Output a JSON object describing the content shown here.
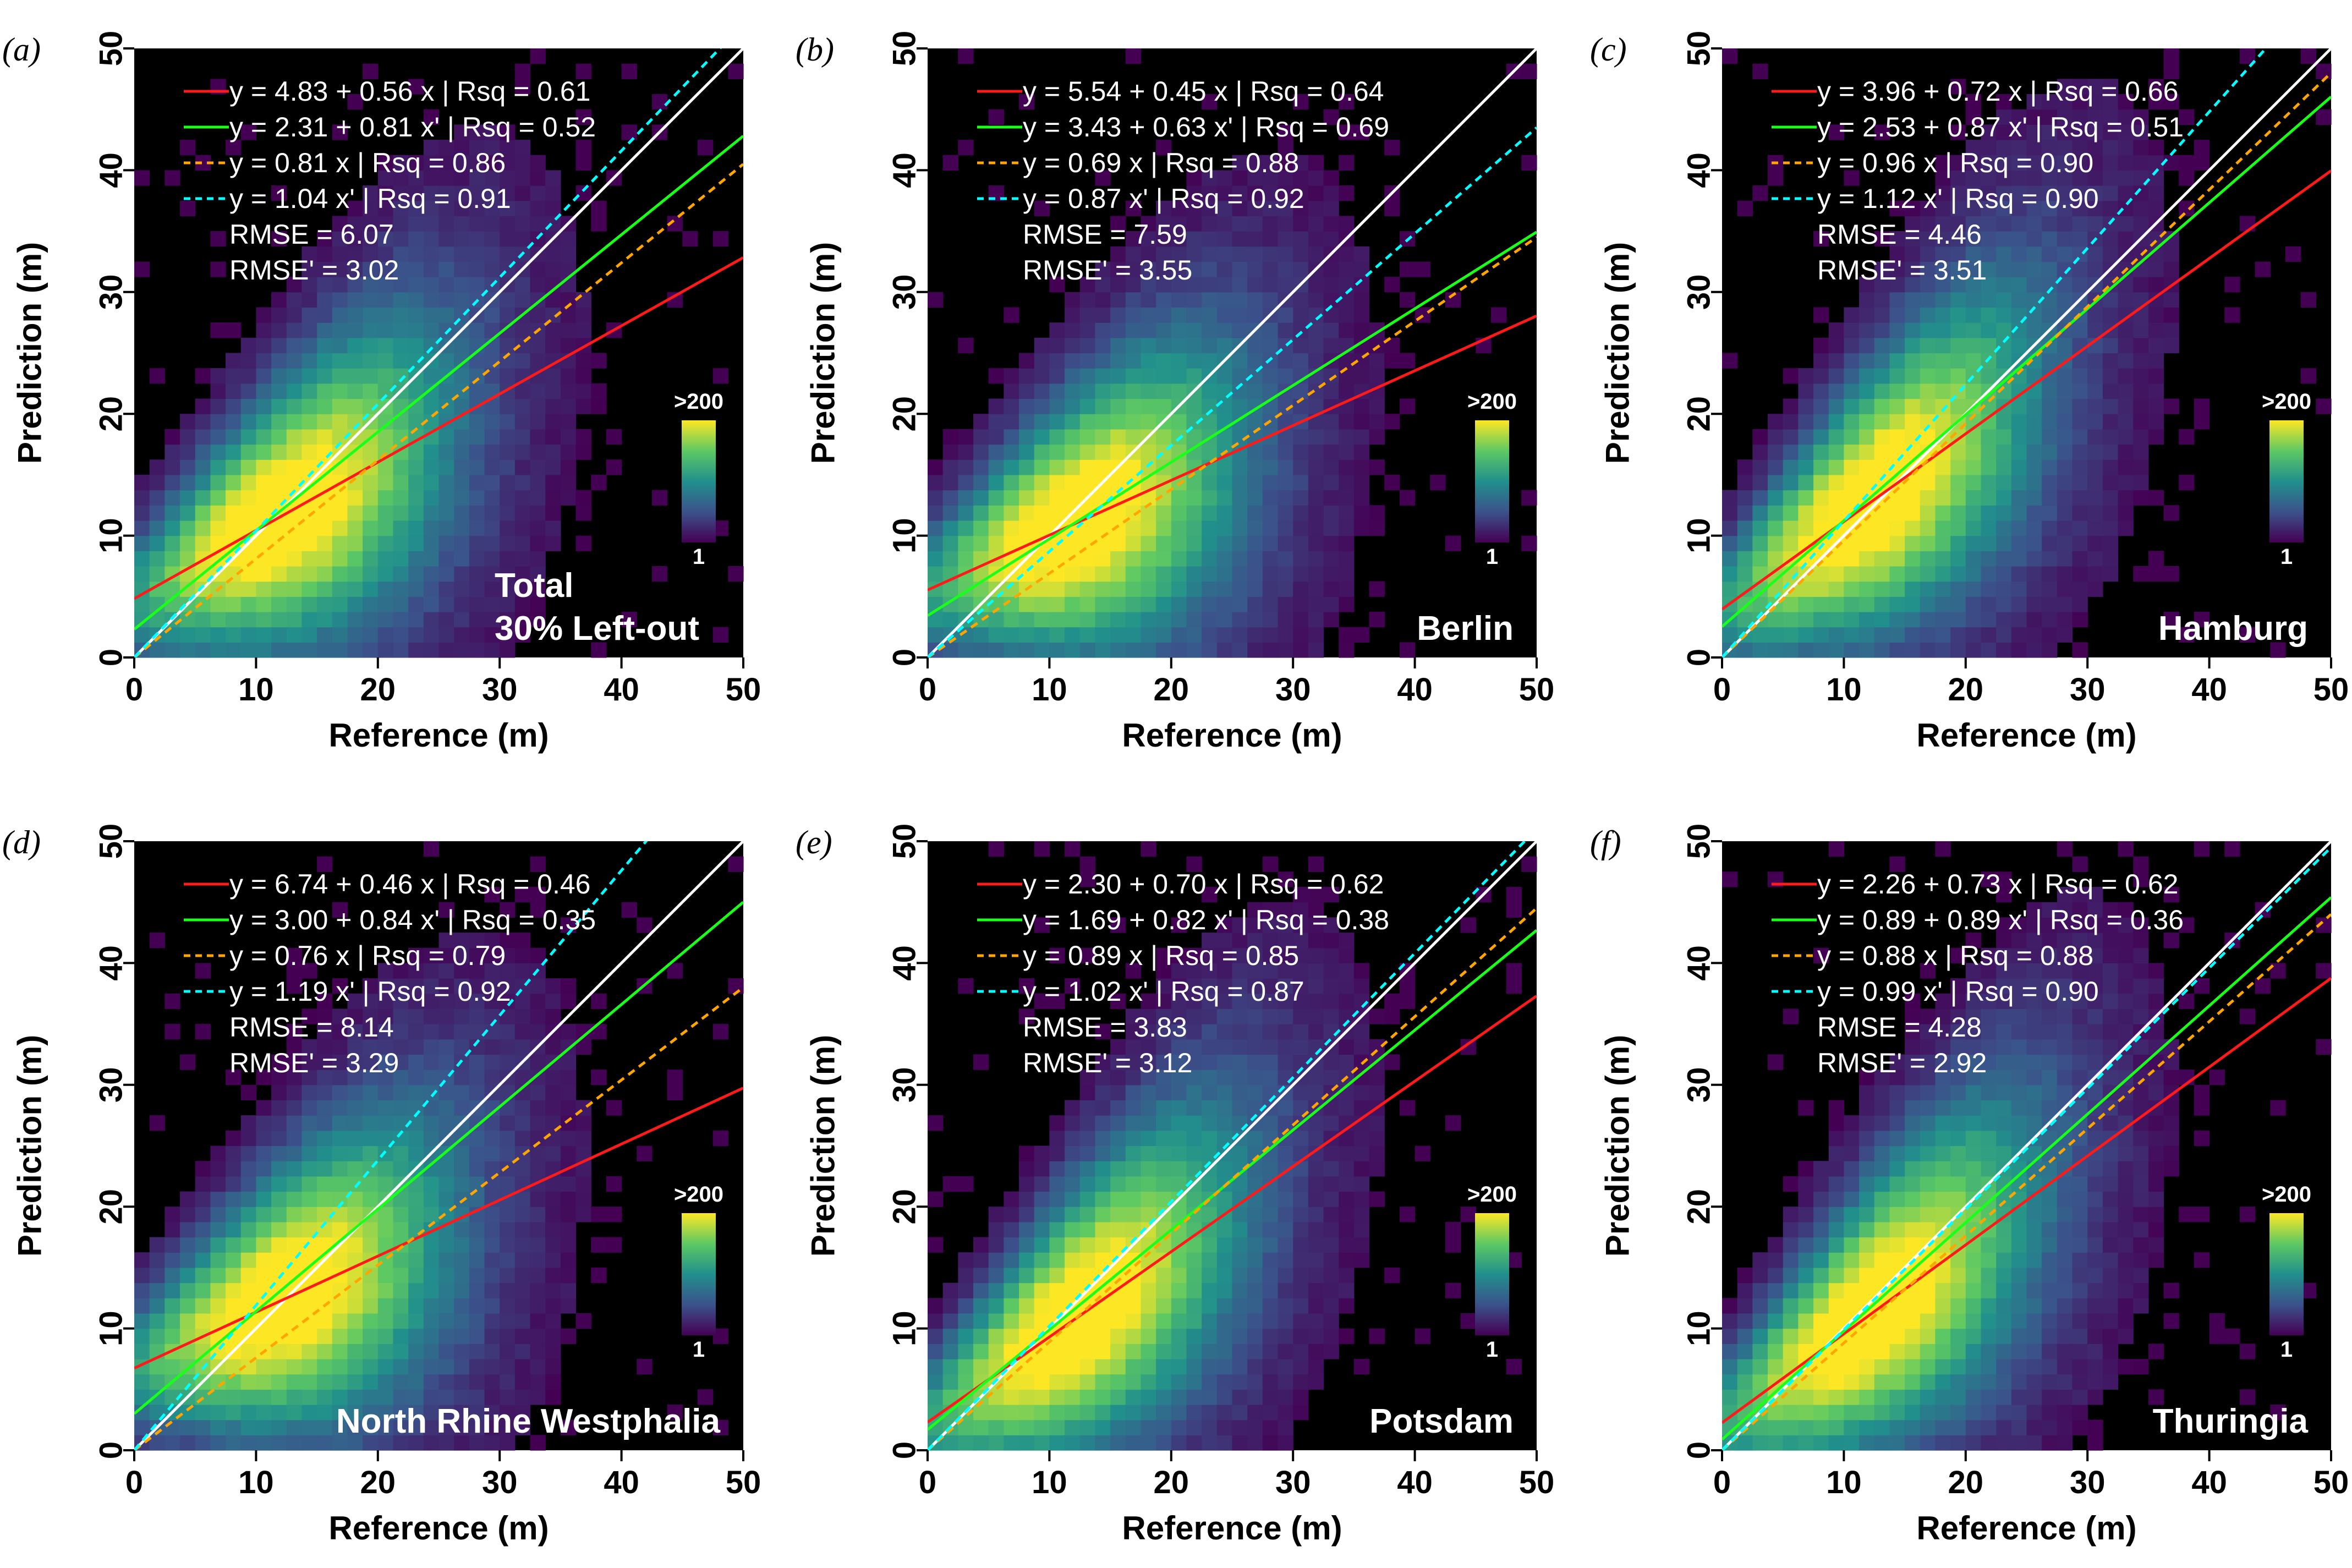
{
  "figure": {
    "xlabel": "Reference (m)",
    "ylabel": "Prediction (m)",
    "colorbar": {
      "max_label": ">200",
      "min_label": "1"
    },
    "colors": {
      "background": "#000000",
      "fit_x": "#ff1a1a",
      "fit_xprime": "#1aff1a",
      "origin_x": "#ffa500",
      "origin_xprime": "#00ffff",
      "identity": "#ffffff"
    }
  },
  "chart_data": [
    {
      "type": "heatmap",
      "panel": "(a)",
      "region": [
        "Total",
        "30% Left-out"
      ],
      "xlabel": "Reference (m)",
      "ylabel": "Prediction (m)",
      "xlim": [
        0,
        50
      ],
      "ylim": [
        0,
        50
      ],
      "xticks": [
        "0",
        "10",
        "20",
        "30",
        "40",
        "50"
      ],
      "yticks": [
        "0",
        "10",
        "20",
        "30",
        "40",
        "50"
      ],
      "series": [
        {
          "label": "y = 4.83 + 0.56 x | Rsq = 0.61",
          "style": "solid",
          "color": "#ff1a1a",
          "intercept": 4.83,
          "slope": 0.56,
          "rsq": 0.61
        },
        {
          "label": "y = 2.31 + 0.81 x' | Rsq = 0.52",
          "style": "solid",
          "color": "#1aff1a",
          "intercept": 2.31,
          "slope": 0.81,
          "rsq": 0.52
        },
        {
          "label": "y = 0.81 x | Rsq = 0.86",
          "style": "dashed",
          "color": "#ffa500",
          "intercept": 0,
          "slope": 0.81,
          "rsq": 0.86
        },
        {
          "label": "y = 1.04 x' | Rsq = 0.91",
          "style": "dashed",
          "color": "#00ffff",
          "intercept": 0,
          "slope": 1.04,
          "rsq": 0.91
        }
      ],
      "rmse_label": "RMSE  = 6.07",
      "rmse_prime_label": "RMSE' = 3.02"
    },
    {
      "type": "heatmap",
      "panel": "(b)",
      "region": [
        "Berlin"
      ],
      "xlabel": "Reference (m)",
      "ylabel": "Prediction (m)",
      "xlim": [
        0,
        50
      ],
      "ylim": [
        0,
        50
      ],
      "xticks": [
        "0",
        "10",
        "20",
        "30",
        "40",
        "50"
      ],
      "yticks": [
        "0",
        "10",
        "20",
        "30",
        "40",
        "50"
      ],
      "series": [
        {
          "label": "y = 5.54 + 0.45 x | Rsq = 0.64",
          "style": "solid",
          "color": "#ff1a1a",
          "intercept": 5.54,
          "slope": 0.45,
          "rsq": 0.64
        },
        {
          "label": "y = 3.43 + 0.63 x' | Rsq = 0.69",
          "style": "solid",
          "color": "#1aff1a",
          "intercept": 3.43,
          "slope": 0.63,
          "rsq": 0.69
        },
        {
          "label": "y = 0.69 x | Rsq = 0.88",
          "style": "dashed",
          "color": "#ffa500",
          "intercept": 0,
          "slope": 0.69,
          "rsq": 0.88
        },
        {
          "label": "y = 0.87 x' | Rsq = 0.92",
          "style": "dashed",
          "color": "#00ffff",
          "intercept": 0,
          "slope": 0.87,
          "rsq": 0.92
        }
      ],
      "rmse_label": "RMSE  = 7.59",
      "rmse_prime_label": "RMSE' = 3.55"
    },
    {
      "type": "heatmap",
      "panel": "(c)",
      "region": [
        "Hamburg"
      ],
      "xlabel": "Reference (m)",
      "ylabel": "Prediction (m)",
      "xlim": [
        0,
        50
      ],
      "ylim": [
        0,
        50
      ],
      "xticks": [
        "0",
        "10",
        "20",
        "30",
        "40",
        "50"
      ],
      "yticks": [
        "0",
        "10",
        "20",
        "30",
        "40",
        "50"
      ],
      "series": [
        {
          "label": "y = 3.96 + 0.72 x | Rsq = 0.66",
          "style": "solid",
          "color": "#ff1a1a",
          "intercept": 3.96,
          "slope": 0.72,
          "rsq": 0.66
        },
        {
          "label": "y = 2.53 + 0.87 x' | Rsq = 0.51",
          "style": "solid",
          "color": "#1aff1a",
          "intercept": 2.53,
          "slope": 0.87,
          "rsq": 0.51
        },
        {
          "label": "y = 0.96 x | Rsq = 0.90",
          "style": "dashed",
          "color": "#ffa500",
          "intercept": 0,
          "slope": 0.96,
          "rsq": 0.9
        },
        {
          "label": "y = 1.12 x' | Rsq = 0.90",
          "style": "dashed",
          "color": "#00ffff",
          "intercept": 0,
          "slope": 1.12,
          "rsq": 0.9
        }
      ],
      "rmse_label": "RMSE  = 4.46",
      "rmse_prime_label": "RMSE' = 3.51"
    },
    {
      "type": "heatmap",
      "panel": "(d)",
      "region": [
        "North Rhine Westphalia"
      ],
      "xlabel": "Reference (m)",
      "ylabel": "Prediction (m)",
      "xlim": [
        0,
        50
      ],
      "ylim": [
        0,
        50
      ],
      "xticks": [
        "0",
        "10",
        "20",
        "30",
        "40",
        "50"
      ],
      "yticks": [
        "0",
        "10",
        "20",
        "30",
        "40",
        "50"
      ],
      "series": [
        {
          "label": "y = 6.74 + 0.46 x | Rsq = 0.46",
          "style": "solid",
          "color": "#ff1a1a",
          "intercept": 6.74,
          "slope": 0.46,
          "rsq": 0.46
        },
        {
          "label": "y = 3.00 + 0.84 x' | Rsq = 0.35",
          "style": "solid",
          "color": "#1aff1a",
          "intercept": 3.0,
          "slope": 0.84,
          "rsq": 0.35
        },
        {
          "label": "y = 0.76 x | Rsq = 0.79",
          "style": "dashed",
          "color": "#ffa500",
          "intercept": 0,
          "slope": 0.76,
          "rsq": 0.79
        },
        {
          "label": "y = 1.19 x' | Rsq = 0.92",
          "style": "dashed",
          "color": "#00ffff",
          "intercept": 0,
          "slope": 1.19,
          "rsq": 0.92
        }
      ],
      "rmse_label": "RMSE  = 8.14",
      "rmse_prime_label": "RMSE' = 3.29"
    },
    {
      "type": "heatmap",
      "panel": "(e)",
      "region": [
        "Potsdam"
      ],
      "xlabel": "Reference (m)",
      "ylabel": "Prediction (m)",
      "xlim": [
        0,
        50
      ],
      "ylim": [
        0,
        50
      ],
      "xticks": [
        "0",
        "10",
        "20",
        "30",
        "40",
        "50"
      ],
      "yticks": [
        "0",
        "10",
        "20",
        "30",
        "40",
        "50"
      ],
      "series": [
        {
          "label": "y = 2.30 + 0.70 x | Rsq = 0.62",
          "style": "solid",
          "color": "#ff1a1a",
          "intercept": 2.3,
          "slope": 0.7,
          "rsq": 0.62
        },
        {
          "label": "y = 1.69 + 0.82 x' | Rsq = 0.38",
          "style": "solid",
          "color": "#1aff1a",
          "intercept": 1.69,
          "slope": 0.82,
          "rsq": 0.38
        },
        {
          "label": "y = 0.89 x | Rsq = 0.85",
          "style": "dashed",
          "color": "#ffa500",
          "intercept": 0,
          "slope": 0.89,
          "rsq": 0.85
        },
        {
          "label": "y = 1.02 x' | Rsq = 0.87",
          "style": "dashed",
          "color": "#00ffff",
          "intercept": 0,
          "slope": 1.02,
          "rsq": 0.87
        }
      ],
      "rmse_label": "RMSE  = 3.83",
      "rmse_prime_label": "RMSE' = 3.12"
    },
    {
      "type": "heatmap",
      "panel": "(f)",
      "region": [
        "Thuringia"
      ],
      "xlabel": "Reference (m)",
      "ylabel": "Prediction (m)",
      "xlim": [
        0,
        50
      ],
      "ylim": [
        0,
        50
      ],
      "xticks": [
        "0",
        "10",
        "20",
        "30",
        "40",
        "50"
      ],
      "yticks": [
        "0",
        "10",
        "20",
        "30",
        "40",
        "50"
      ],
      "series": [
        {
          "label": "y = 2.26 + 0.73 x | Rsq = 0.62",
          "style": "solid",
          "color": "#ff1a1a",
          "intercept": 2.26,
          "slope": 0.73,
          "rsq": 0.62
        },
        {
          "label": "y = 0.89 + 0.89 x' | Rsq = 0.36",
          "style": "solid",
          "color": "#1aff1a",
          "intercept": 0.89,
          "slope": 0.89,
          "rsq": 0.36
        },
        {
          "label": "y = 0.88 x | Rsq = 0.88",
          "style": "dashed",
          "color": "#ffa500",
          "intercept": 0,
          "slope": 0.88,
          "rsq": 0.88
        },
        {
          "label": "y = 0.99 x' | Rsq = 0.90",
          "style": "dashed",
          "color": "#00ffff",
          "intercept": 0,
          "slope": 0.99,
          "rsq": 0.9
        }
      ],
      "rmse_label": "RMSE  = 4.28",
      "rmse_prime_label": "RMSE' = 2.92"
    }
  ]
}
